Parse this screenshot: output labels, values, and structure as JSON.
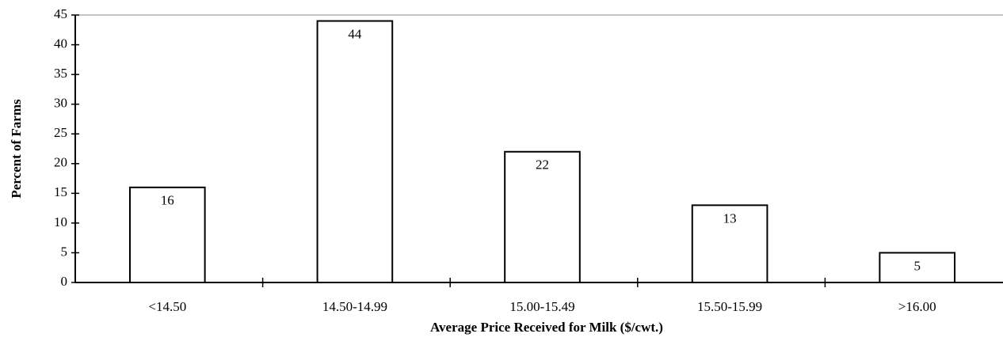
{
  "chart_data": {
    "type": "bar",
    "x_label": "Average Price Received for Milk ($/cwt.)",
    "y_label": "Percent of Farms",
    "categories": [
      "<14.50",
      "14.50-14.99",
      "15.00-15.49",
      "15.50-15.99",
      ">16.00"
    ],
    "values": [
      16,
      44,
      22,
      13,
      5
    ],
    "color": "#ffffff",
    "ylim": [
      0,
      45
    ],
    "yticks": [
      0,
      5,
      10,
      15,
      20,
      25,
      30,
      35,
      40,
      45
    ],
    "show_value_labels": true
  }
}
